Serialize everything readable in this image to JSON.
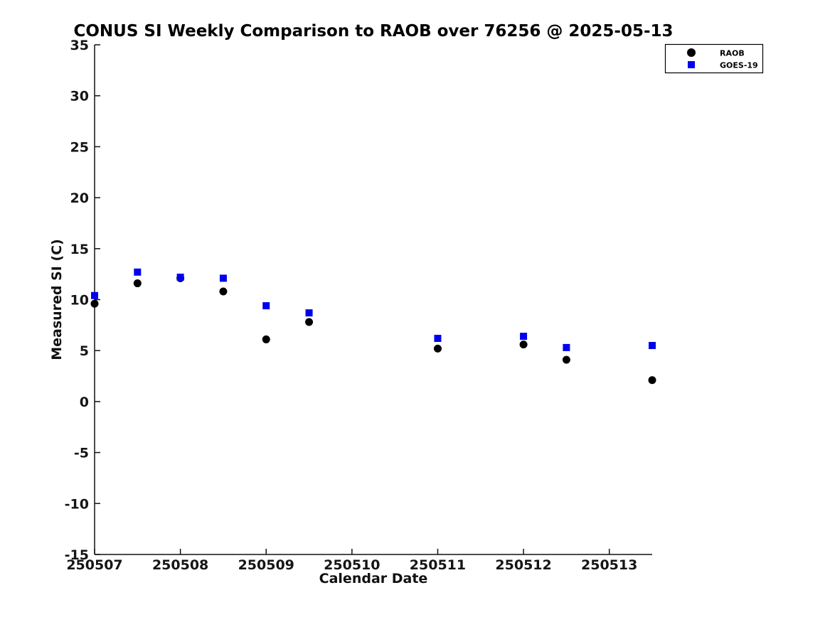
{
  "chart_data": {
    "type": "scatter",
    "title": "CONUS SI Weekly Comparison to RAOB over 76256 @ 2025-05-13",
    "xlabel": "Calendar Date",
    "ylabel": "Measured SI (C)",
    "xlim": [
      250507,
      250513.5
    ],
    "ylim": [
      -15,
      35
    ],
    "x_ticks": [
      250507,
      250508,
      250509,
      250510,
      250511,
      250512,
      250513
    ],
    "y_ticks": [
      35,
      30,
      25,
      20,
      15,
      10,
      5,
      0,
      -5,
      -10,
      -15
    ],
    "grid": false,
    "legend_position": "top-right",
    "axis_color": "#111111",
    "background_color": "#ffffff",
    "series": [
      {
        "name": "RAOB",
        "marker": "circle",
        "color": "#000000",
        "x": [
          250507,
          250507.5,
          250508,
          250508.5,
          250509,
          250509.5,
          250511,
          250512,
          250512.5,
          250513.5
        ],
        "y": [
          9.6,
          11.6,
          12.1,
          10.8,
          6.1,
          7.8,
          5.2,
          5.6,
          4.1,
          2.1
        ]
      },
      {
        "name": "GOES-19",
        "marker": "square",
        "color": "#0000ee",
        "x": [
          250507,
          250507.5,
          250508,
          250508.5,
          250509,
          250509.5,
          250511,
          250512,
          250512.5,
          250513.5
        ],
        "y": [
          10.4,
          12.7,
          12.2,
          12.1,
          9.4,
          8.7,
          6.2,
          6.4,
          5.3,
          5.5
        ]
      }
    ]
  }
}
